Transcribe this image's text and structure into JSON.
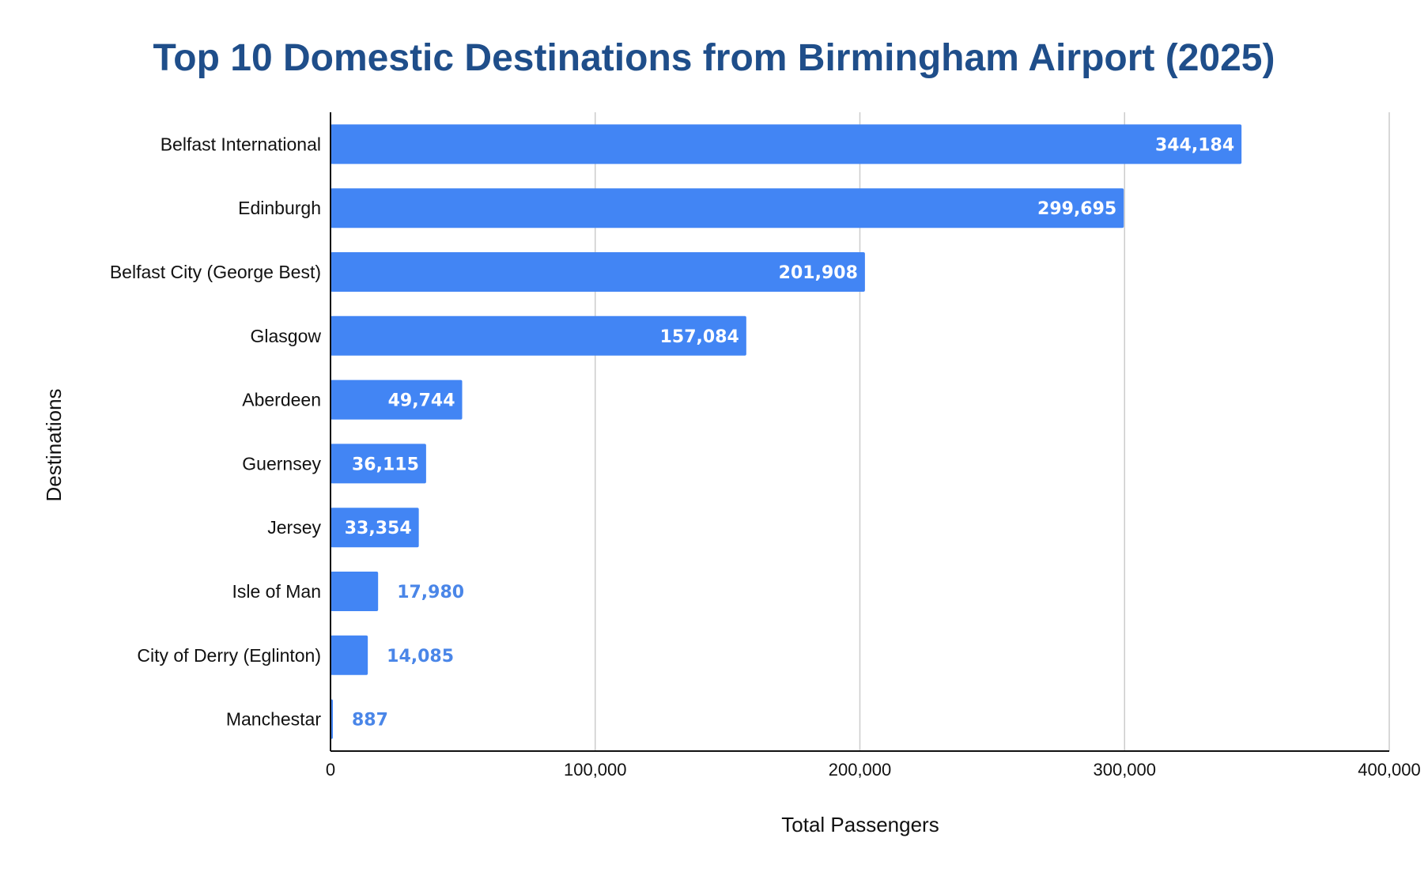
{
  "chart_data": {
    "type": "bar",
    "orientation": "horizontal",
    "title": "Top 10 Domestic Destinations from Birmingham Airport (2025)",
    "xlabel": "Total Passengers",
    "ylabel": "Destinations",
    "categories": [
      "Belfast International",
      "Edinburgh",
      "Belfast City (George Best)",
      "Glasgow",
      "Aberdeen",
      "Guernsey",
      "Jersey",
      "Isle of Man",
      "City of Derry (Eglinton)",
      "Manchestar"
    ],
    "values": [
      344184,
      299695,
      201908,
      157084,
      49744,
      36115,
      33354,
      17980,
      14085,
      887
    ],
    "value_labels": [
      "344,184",
      "299,695",
      "201,908",
      "157,084",
      "49,744",
      "36,115",
      "33,354",
      "17,980",
      "14,085",
      "887"
    ],
    "xlim": [
      0,
      400000
    ],
    "xticks": [
      0,
      100000,
      200000,
      300000,
      400000
    ],
    "xtick_labels": [
      "0",
      "100,000",
      "200,000",
      "300,000",
      "400,000"
    ],
    "grid": "vertical",
    "legend": "none",
    "colors": {
      "bar": "#4285f4",
      "label_inside": "#ffffff",
      "label_outside": "#4a86e8",
      "title": "#1f4e8a",
      "grid": "#cccccc",
      "axis": "#111111"
    }
  }
}
